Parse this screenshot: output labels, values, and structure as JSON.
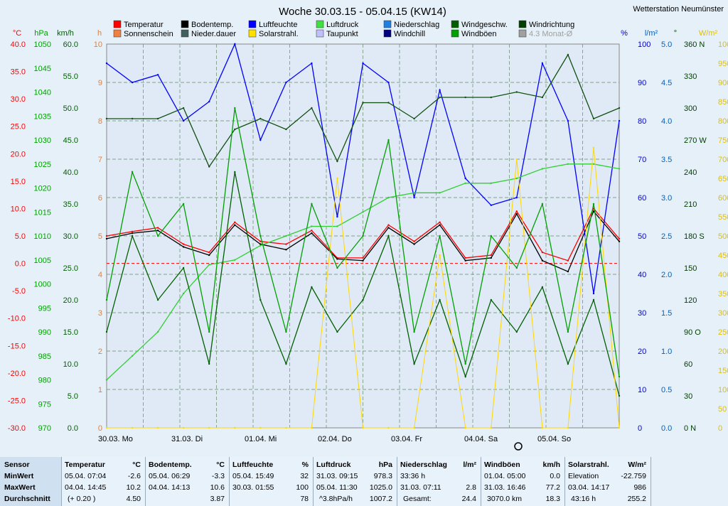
{
  "chart_data": {
    "type": "line",
    "title": "Woche 30.03.15 - 05.04.15 (KW14)",
    "station": "Wetterstation Neumünster",
    "x_labels": [
      "30.03. Mo",
      "31.03. Di",
      "01.04. Mi",
      "02.04. Do",
      "03.04. Fr",
      "04.04. Sa",
      "05.04. So"
    ],
    "axes": {
      "temperature": {
        "unit": "°C",
        "ticks": [
          "40.0",
          "35.0",
          "30.0",
          "25.0",
          "20.0",
          "15.0",
          "10.0",
          "5.0",
          "0.0",
          "-5.0",
          "-10.0",
          "-15.0",
          "-20.0",
          "-25.0",
          "-30.0"
        ],
        "range": [
          -30,
          40
        ],
        "color": "#ff0000"
      },
      "pressure": {
        "unit": "hPa",
        "ticks": [
          "1050",
          "1045",
          "1040",
          "1035",
          "1030",
          "1025",
          "1020",
          "1015",
          "1010",
          "1005",
          "1000",
          "995",
          "990",
          "985",
          "980",
          "975",
          "970"
        ],
        "range": [
          970,
          1050
        ],
        "color": "#00a000"
      },
      "wind": {
        "unit": "km/h",
        "ticks": [
          "60.0",
          "55.0",
          "50.0",
          "45.0",
          "40.0",
          "35.0",
          "30.0",
          "25.0",
          "20.0",
          "15.0",
          "10.0",
          "5.0",
          "0.0"
        ],
        "range": [
          0,
          60
        ],
        "color": "#006000"
      },
      "hours": {
        "unit": "h",
        "ticks": [
          "10",
          "9",
          "8",
          "7",
          "6",
          "5",
          "4",
          "3",
          "2",
          "1",
          "0"
        ],
        "range": [
          0,
          10
        ],
        "color": "#e08040"
      },
      "humidity": {
        "unit": "%",
        "ticks": [
          "100",
          "90",
          "80",
          "70",
          "60",
          "50",
          "40",
          "30",
          "20",
          "10",
          "0"
        ],
        "range": [
          0,
          100
        ],
        "color": "#0000d0"
      },
      "rain": {
        "unit": "l/m²",
        "ticks": [
          "5.0",
          "4.5",
          "4.0",
          "3.5",
          "3.0",
          "2.5",
          "2.0",
          "1.5",
          "1.0",
          "0.5",
          "0.0"
        ],
        "range": [
          0,
          5
        ],
        "color": "#0060c0"
      },
      "direction": {
        "unit": "°",
        "ticks": [
          "360 N",
          "330",
          "300",
          "270 W",
          "240",
          "210",
          "180 S",
          "150",
          "120",
          "90 O",
          "60",
          "30",
          "0 N"
        ],
        "range": [
          0,
          360
        ],
        "color": "#004000"
      },
      "solar": {
        "unit": "W/m²",
        "ticks": [
          "1000",
          "950",
          "900",
          "850",
          "800",
          "750",
          "700",
          "650",
          "600",
          "550",
          "500",
          "450",
          "400",
          "350",
          "300",
          "250",
          "200",
          "150",
          "100",
          "50",
          "0"
        ],
        "range": [
          0,
          1000
        ],
        "color": "#e0c000"
      }
    },
    "legend": [
      {
        "label": "Temperatur",
        "color": "#ff0000"
      },
      {
        "label": "Bodentemp.",
        "color": "#000000"
      },
      {
        "label": "Luftfeuchte",
        "color": "#0000ff"
      },
      {
        "label": "Luftdruck",
        "color": "#40e040"
      },
      {
        "label": "Niederschlag",
        "color": "#2080e0"
      },
      {
        "label": "Windgeschw.",
        "color": "#006000"
      },
      {
        "label": "Windrichtung",
        "color": "#004000"
      },
      {
        "label": "Sonnenschein",
        "color": "#f08040"
      },
      {
        "label": "Nieder.dauer",
        "color": "#406060"
      },
      {
        "label": "Solarstrahl.",
        "color": "#ffe000"
      },
      {
        "label": "Taupunkt",
        "color": "#c0c0ff"
      },
      {
        "label": "Windchill",
        "color": "#000080"
      },
      {
        "label": "Windböen",
        "color": "#00a000"
      },
      {
        "label": "4.3 Monat-Ø",
        "color": "#a0a0a0"
      }
    ],
    "series": [
      {
        "name": "Temperatur",
        "axis": "temperature",
        "values": [
          5.0,
          5.8,
          6.5,
          3.5,
          2.0,
          7.5,
          4.0,
          3.5,
          6.0,
          1.0,
          1.0,
          7.0,
          4.0,
          7.5,
          1.0,
          1.5,
          9.5,
          2.0,
          0.5,
          10.0,
          4.5
        ]
      },
      {
        "name": "Bodentemp.",
        "axis": "temperature",
        "values": [
          4.5,
          5.5,
          6.0,
          3.0,
          1.5,
          7.0,
          3.5,
          2.5,
          5.5,
          0.8,
          0.5,
          6.5,
          3.5,
          7.0,
          0.5,
          1.0,
          9.0,
          0.5,
          -1.5,
          9.5,
          4.0
        ]
      },
      {
        "name": "Luftfeuchte",
        "axis": "humidity",
        "values": [
          95,
          90,
          92,
          80,
          85,
          100,
          75,
          90,
          95,
          55,
          95,
          90,
          60,
          88,
          65,
          58,
          60,
          95,
          80,
          35,
          80
        ]
      },
      {
        "name": "Luftdruck",
        "axis": "pressure",
        "values": [
          980,
          985,
          990,
          998,
          1004,
          1005,
          1008,
          1010,
          1012,
          1012,
          1015,
          1018,
          1019,
          1019,
          1021,
          1021,
          1022,
          1024,
          1025,
          1025,
          1024
        ]
      },
      {
        "name": "Windgeschw.",
        "axis": "wind",
        "values": [
          15,
          30,
          20,
          25,
          10,
          40,
          20,
          10,
          22,
          15,
          20,
          30,
          10,
          20,
          8,
          20,
          15,
          22,
          10,
          20,
          5
        ]
      },
      {
        "name": "Windrichtung",
        "axis": "direction",
        "values": [
          290,
          290,
          290,
          300,
          245,
          280,
          290,
          280,
          300,
          250,
          305,
          305,
          290,
          310,
          310,
          310,
          315,
          310,
          350,
          290,
          300
        ]
      },
      {
        "name": "Solarstrahl.",
        "axis": "solar",
        "values": [
          0,
          0,
          0,
          0,
          0,
          0,
          0,
          0,
          0,
          650,
          0,
          0,
          0,
          450,
          0,
          0,
          700,
          0,
          0,
          730,
          0
        ]
      },
      {
        "name": "Windböen",
        "axis": "wind",
        "values": [
          20,
          40,
          30,
          35,
          15,
          50,
          30,
          15,
          35,
          25,
          30,
          45,
          15,
          30,
          10,
          30,
          25,
          35,
          15,
          35,
          8
        ]
      }
    ],
    "rain_bars_label": "Niederschlag",
    "sunshine_bars_label": "Sonnenschein"
  },
  "table": {
    "row_labels": [
      "Sensor",
      "MinWert",
      "MaxWert",
      "Durchschnitt"
    ],
    "columns": [
      {
        "title": "Temperatur",
        "unit": "°C",
        "min_time": "05.04.  07:04",
        "min": "-2.6",
        "max_time": "04.04.  14:45",
        "max": "10.2",
        "avg_note": "(+ 0.20 )",
        "avg": "4.50"
      },
      {
        "title": "Bodentemp.",
        "unit": "°C",
        "min_time": "05.04.  06:29",
        "min": "-3.3",
        "max_time": "04.04.  14:13",
        "max": "10.6",
        "avg_note": "",
        "avg": "3.87"
      },
      {
        "title": "Luftfeuchte",
        "unit": "%",
        "min_time": "05.04.  15:49",
        "min": "32",
        "max_time": "30.03.  01:55",
        "max": "100",
        "avg_note": "",
        "avg": "78"
      },
      {
        "title": "Luftdruck",
        "unit": "hPa",
        "min_time": "31.03.  09:15",
        "min": "978.3",
        "max_time": "05.04.  11:30",
        "max": "1025.0",
        "avg_note": "^3.8hPa/h",
        "avg": "1007.2"
      },
      {
        "title": "Niederschlag",
        "unit": "l/m²",
        "min_time": "33:36 h",
        "min": "",
        "max_time": "31.03.  07:11",
        "max": "2.8",
        "avg_note": "Gesamt:",
        "avg": "24.4"
      },
      {
        "title": "Windböen",
        "unit": "km/h",
        "min_time": "01.04.  05:00",
        "min": "0.0",
        "max_time": "31.03.  16:46",
        "max": "77.2",
        "avg_note": "3070.0 km",
        "avg": "18.3"
      },
      {
        "title": "Solarstrahl.",
        "unit": "W/m²",
        "min_time": "Elevation",
        "min": "-22.759",
        "max_time": "03.04.  14:17",
        "max": "986",
        "avg_note": "43:16 h",
        "avg": "255.2"
      }
    ]
  }
}
